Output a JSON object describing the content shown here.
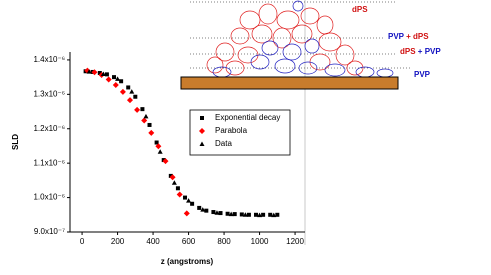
{
  "chart_data": {
    "type": "scatter",
    "xlabel": "z (angstroms)",
    "ylabel": "SLD",
    "xlim": [
      -68,
      1256
    ],
    "xticks": [
      0,
      200,
      400,
      600,
      800,
      1000,
      1200
    ],
    "ylim": [
      9e-07,
      1.423e-06
    ],
    "yticks": [
      {
        "value": 9e-07,
        "label": "9.0x10⁻⁷"
      },
      {
        "value": 1e-06,
        "label": "1.0x10⁻⁶"
      },
      {
        "value": 1.1e-06,
        "label": "1.1x10⁻⁶"
      },
      {
        "value": 1.2e-06,
        "label": "1.2x10⁻⁶"
      },
      {
        "value": 1.3e-06,
        "label": "1.3x10⁻⁶"
      },
      {
        "value": 1.4e-06,
        "label": "1.4x10⁻⁶"
      }
    ],
    "series": [
      {
        "name": "Exponential decay",
        "color": "#000000",
        "marker": "square",
        "x": [
          20,
          60,
          100,
          140,
          180,
          220,
          260,
          300,
          340,
          380,
          420,
          460,
          500,
          540,
          580,
          620,
          660,
          700,
          740,
          780,
          820,
          860,
          900,
          940,
          980,
          1020,
          1060,
          1100
        ],
        "values": [
          1.367e-06,
          1.365e-06,
          1.362e-06,
          1.358e-06,
          1.35e-06,
          1.338e-06,
          1.32e-06,
          1.293e-06,
          1.257e-06,
          1.211e-06,
          1.16e-06,
          1.109e-06,
          1.063e-06,
          1.027e-06,
          1e-06,
          9.82e-07,
          9.7e-07,
          9.62e-07,
          9.58e-07,
          9.55e-07,
          9.53e-07,
          9.52e-07,
          9.51e-07,
          9.5e-07,
          9.5e-07,
          9.5e-07,
          9.5e-07,
          9.5e-07
        ]
      },
      {
        "name": "Parabola",
        "color": "#ff0000",
        "marker": "diamond",
        "x": [
          30,
          70,
          110,
          150,
          190,
          230,
          270,
          310,
          350,
          390,
          430,
          470,
          510,
          550,
          590
        ],
        "values": [
          1.369e-06,
          1.364e-06,
          1.356e-06,
          1.343e-06,
          1.327e-06,
          1.307e-06,
          1.283e-06,
          1.255e-06,
          1.224e-06,
          1.188e-06,
          1.149e-06,
          1.106e-06,
          1.059e-06,
          1.009e-06,
          9.54e-07
        ]
      },
      {
        "name": "Data",
        "color": "#000000",
        "marker": "triangle",
        "x": [
          40,
          120,
          200,
          280,
          360,
          440,
          520,
          600,
          680,
          760,
          840,
          920,
          1000,
          1080
        ],
        "values": [
          1.366e-06,
          1.359e-06,
          1.345e-06,
          1.308e-06,
          1.236e-06,
          1.133e-06,
          1.043e-06,
          9.91e-07,
          9.65e-07,
          9.56e-07,
          9.52e-07,
          9.5e-07,
          9.49e-07,
          9.49e-07
        ]
      }
    ]
  },
  "inset": {
    "labels": [
      [
        "dPS"
      ],
      [
        "PVP",
        "+",
        "dPS"
      ],
      [
        "dPS",
        "+",
        "PVP"
      ],
      [
        "PVP"
      ]
    ]
  }
}
